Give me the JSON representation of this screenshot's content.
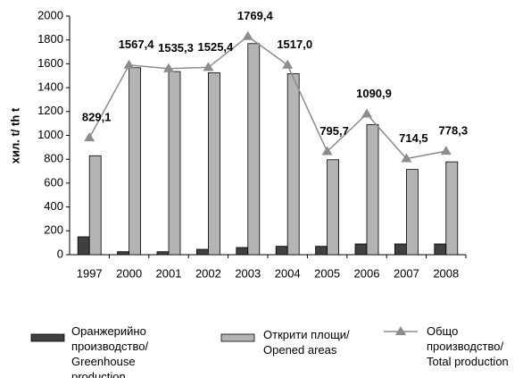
{
  "chart_data": {
    "type": "bar",
    "ylabel": "хил. t/ th t",
    "categories": [
      "1997",
      "2000",
      "2001",
      "2002",
      "2003",
      "2004",
      "2005",
      "2006",
      "2007",
      "2008"
    ],
    "series": [
      {
        "name": "Оранжерийно производство/ Greenhouse production",
        "color": "#404040",
        "values": [
          150,
          25,
          25,
          45,
          60,
          70,
          70,
          90,
          90,
          90
        ]
      },
      {
        "name": "Открити площи/ Opened areas",
        "color": "#b4b4b4",
        "values": [
          829.1,
          1567.4,
          1535.3,
          1525.4,
          1769.4,
          1517.0,
          795.7,
          1090.9,
          714.5,
          778.3
        ],
        "value_labels": [
          "829,1",
          "1567,4",
          "1535,3",
          "1525,4",
          "1769,4",
          "1517,0",
          "795,7",
          "1090,9",
          "714,5",
          "778,3"
        ]
      },
      {
        "name": "Общо производство/ Total production",
        "type": "line",
        "color": "#8c8c8c",
        "values": [
          980,
          1590,
          1560,
          1570,
          1830,
          1590,
          865,
          1180,
          805,
          868
        ]
      }
    ],
    "ylim": [
      0,
      2000
    ],
    "yticks": [
      0,
      200,
      400,
      600,
      800,
      1000,
      1200,
      1400,
      1600,
      1800,
      2000
    ]
  }
}
